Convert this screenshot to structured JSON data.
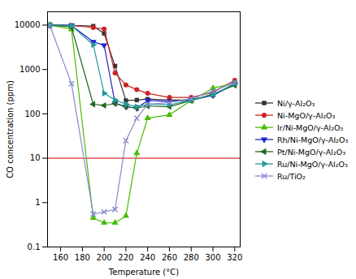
{
  "chart_data": {
    "type": "line",
    "xlabel": "Temperature (°C)",
    "ylabel": "CO concentration (ppm)",
    "log": "y",
    "xlim": [
      148,
      325
    ],
    "xticks": [
      160,
      180,
      200,
      220,
      240,
      260,
      280,
      300,
      320
    ],
    "ylim": [
      0.1,
      20000
    ],
    "yticks": [
      0.1,
      1,
      10,
      100,
      1000,
      10000
    ],
    "grid": false,
    "legend": "right",
    "reference_line": {
      "y": 10,
      "color": "#cc0000"
    },
    "x": [
      150,
      170,
      190,
      200,
      210,
      220,
      230,
      240,
      260,
      280,
      300,
      320
    ],
    "series": [
      {
        "name": "Ni/γ-Al₂O₃",
        "color": "#333333",
        "marker": "square",
        "line_style": "solid",
        "values": [
          10000,
          9800,
          9500,
          6500,
          1200,
          200,
          205,
          215,
          205,
          205,
          265,
          470
        ]
      },
      {
        "name": "Ni-MgO/γ-Al₂O₃",
        "color": "#cc2222",
        "marker": "circle",
        "line_style": "solid",
        "values": [
          10000,
          9800,
          8800,
          8200,
          830,
          450,
          350,
          290,
          235,
          235,
          305,
          570
        ]
      },
      {
        "name": "Ir/Ni-MgO/γ-Al₂O₃",
        "color": "#44bb00",
        "marker": "triangle-up",
        "line_style": "solid",
        "values": [
          10000,
          8000,
          0.45,
          0.35,
          0.35,
          0.5,
          13,
          80,
          95,
          200,
          380,
          490
        ]
      },
      {
        "name": "Rh/Ni-MgO/γ-Al₂O₃",
        "color": "#2222cc",
        "marker": "triangle-down",
        "line_style": "solid",
        "values": [
          10000,
          9800,
          4200,
          3500,
          175,
          145,
          135,
          200,
          190,
          205,
          260,
          475
        ]
      },
      {
        "name": "Pt/Ni-MgO/γ-Al₂O₃",
        "color": "#226622",
        "marker": "triangle-left",
        "line_style": "solid",
        "values": [
          10000,
          9000,
          165,
          155,
          170,
          145,
          135,
          150,
          145,
          200,
          280,
          440
        ]
      },
      {
        "name": "Ru/Ni-MgO/γ-Al₂O₃",
        "color": "#229999",
        "marker": "triangle-right",
        "line_style": "solid",
        "values": [
          10000,
          9800,
          3600,
          290,
          205,
          165,
          145,
          165,
          160,
          205,
          270,
          480
        ]
      },
      {
        "name": "Ru/TiO₂",
        "color": "#8888cc",
        "marker": "x",
        "line_style": "solid",
        "values": [
          10000,
          480,
          0.55,
          0.62,
          0.7,
          25,
          80,
          165,
          180,
          220,
          325,
          510
        ]
      }
    ]
  }
}
